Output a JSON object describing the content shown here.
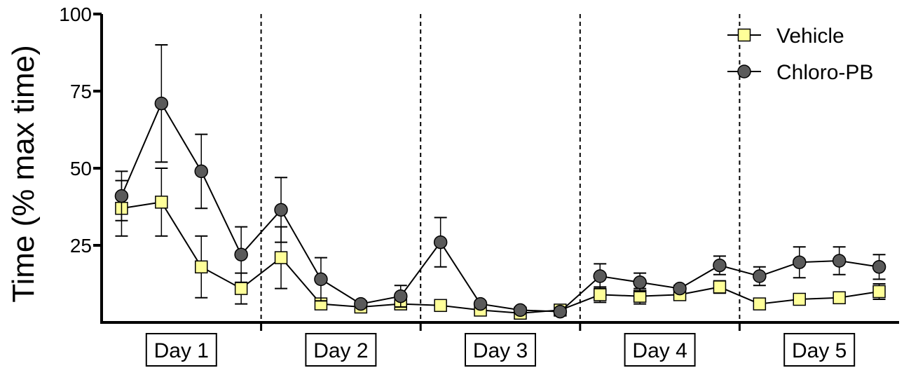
{
  "chart_data": {
    "type": "line",
    "ylabel": "Time (% max time)",
    "ylim": [
      0,
      100
    ],
    "yticks": [
      25,
      50,
      75,
      100
    ],
    "ytick_labels": [
      "25",
      "50",
      "75",
      "100"
    ],
    "groups": [
      "Day 1",
      "Day 2",
      "Day 3",
      "Day 4",
      "Day 5"
    ],
    "trials_per_group": 4,
    "legend_position": "top-right",
    "series": [
      {
        "name": "Vehicle",
        "marker": "square",
        "marker_color": "#ffff99",
        "values": [
          37,
          39,
          18,
          11,
          21,
          6,
          5,
          6,
          5.5,
          4,
          3,
          4,
          9,
          8.5,
          9,
          11.5,
          6,
          7.5,
          8,
          10
        ],
        "errors": [
          9,
          11,
          10,
          5,
          10,
          0.8,
          0.8,
          1,
          0.8,
          0.5,
          0.5,
          0.5,
          2.5,
          2.5,
          1.5,
          2,
          0.5,
          0.8,
          0.8,
          2.5
        ]
      },
      {
        "name": "Chloro-PB",
        "marker": "circle",
        "marker_color": "#5a5a5a",
        "values": [
          41,
          71,
          49,
          22,
          36.5,
          14,
          6,
          8.5,
          26,
          6,
          4,
          3.5,
          15,
          13,
          11,
          18.5,
          15,
          19.5,
          20,
          18
        ],
        "errors": [
          8,
          19,
          12,
          9,
          10.5,
          7,
          0.5,
          3.5,
          8,
          0.5,
          0.5,
          0.5,
          4,
          3,
          1,
          3,
          3,
          5,
          4.5,
          4
        ]
      }
    ]
  }
}
